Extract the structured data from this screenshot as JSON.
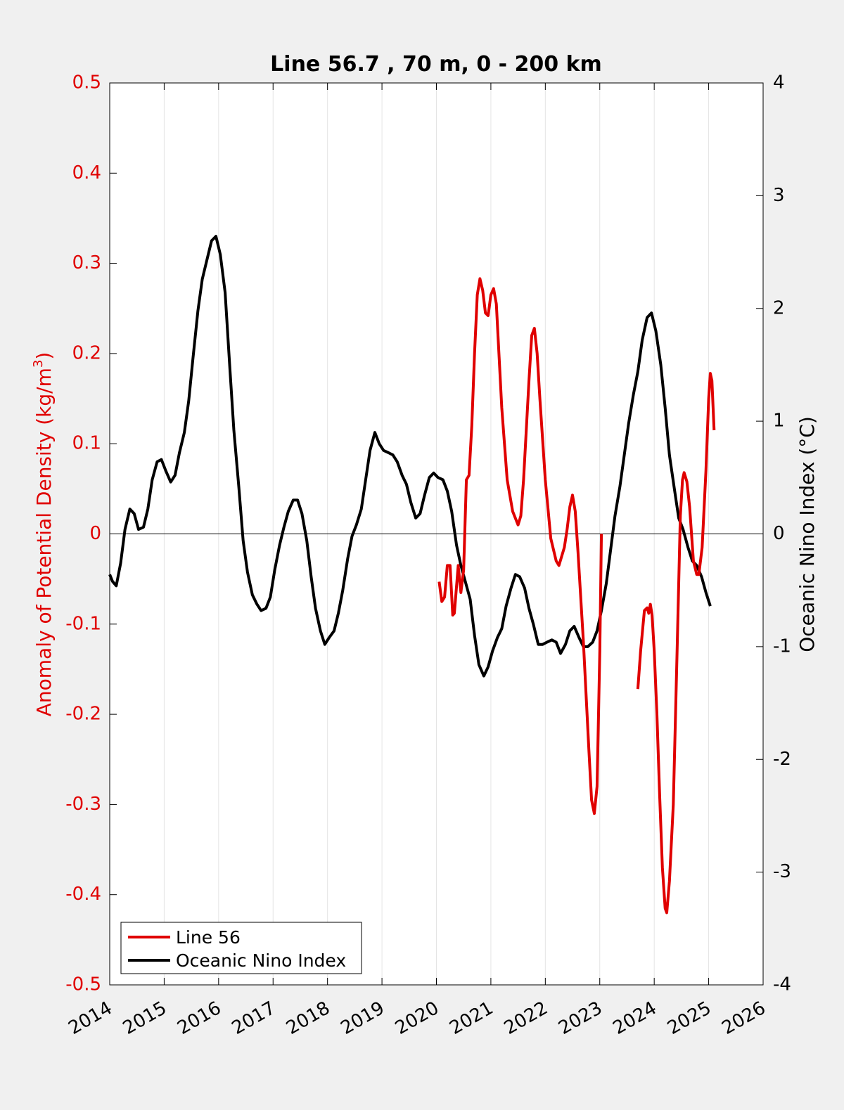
{
  "chart_data": {
    "type": "line",
    "title": "Line 56.7 , 70 m, 0 - 200 km",
    "xlabel": "",
    "ylabel_left": "Anomaly of Potential Density (kg/m",
    "ylabel_left_sup": "3",
    "ylabel_left_close": ")",
    "ylabel_right": "Oceanic Nino Index (°C)",
    "xlim": [
      2014,
      2026
    ],
    "ylim_left": [
      -0.5,
      0.5
    ],
    "ylim_right": [
      -4,
      4
    ],
    "x_ticks": [
      2014,
      2015,
      2016,
      2017,
      2018,
      2019,
      2020,
      2021,
      2022,
      2023,
      2024,
      2025,
      2026
    ],
    "x_tick_labels": [
      "2014",
      "2015",
      "2016",
      "2017",
      "2018",
      "2019",
      "2020",
      "2021",
      "2022",
      "2023",
      "2024",
      "2025",
      "2026"
    ],
    "y_left_ticks": [
      -0.5,
      -0.4,
      -0.3,
      -0.2,
      -0.1,
      0,
      0.1,
      0.2,
      0.3,
      0.4,
      0.5
    ],
    "y_left_tick_labels": [
      "-0.5",
      "-0.4",
      "-0.3",
      "-0.2",
      "-0.1",
      "0",
      "0.1",
      "0.2",
      "0.3",
      "0.4",
      "0.5"
    ],
    "y_right_ticks": [
      -4,
      -3,
      -2,
      -1,
      0,
      1,
      2,
      3,
      4
    ],
    "y_right_tick_labels": [
      "-4",
      "-3",
      "-2",
      "-1",
      "0",
      "1",
      "2",
      "3",
      "4"
    ],
    "grid": "vertical lines at x ticks",
    "zero_line": true,
    "legend_position": "bottom-left",
    "colors": {
      "line56": "#e00000",
      "oni": "#000000",
      "left_axis": "#e00000",
      "right_axis": "#000000"
    },
    "series": [
      {
        "name": "Line 56",
        "axis": "left",
        "segments": [
          [
            [
              2020.05,
              -0.053
            ],
            [
              2020.1,
              -0.075
            ],
            [
              2020.15,
              -0.07
            ],
            [
              2020.2,
              -0.035
            ],
            [
              2020.25,
              -0.035
            ],
            [
              2020.3,
              -0.09
            ],
            [
              2020.33,
              -0.088
            ],
            [
              2020.4,
              -0.035
            ],
            [
              2020.45,
              -0.065
            ],
            [
              2020.5,
              -0.04
            ],
            [
              2020.55,
              0.06
            ],
            [
              2020.6,
              0.065
            ],
            [
              2020.65,
              0.12
            ],
            [
              2020.7,
              0.2
            ],
            [
              2020.75,
              0.265
            ],
            [
              2020.8,
              0.283
            ],
            [
              2020.85,
              0.27
            ],
            [
              2020.9,
              0.245
            ],
            [
              2020.95,
              0.242
            ],
            [
              2021.0,
              0.265
            ],
            [
              2021.05,
              0.272
            ],
            [
              2021.1,
              0.255
            ],
            [
              2021.2,
              0.14
            ],
            [
              2021.3,
              0.06
            ],
            [
              2021.4,
              0.025
            ],
            [
              2021.5,
              0.01
            ],
            [
              2021.55,
              0.02
            ],
            [
              2021.6,
              0.06
            ],
            [
              2021.7,
              0.17
            ],
            [
              2021.75,
              0.22
            ],
            [
              2021.8,
              0.228
            ],
            [
              2021.85,
              0.2
            ],
            [
              2021.9,
              0.15
            ],
            [
              2022.0,
              0.06
            ],
            [
              2022.1,
              -0.005
            ],
            [
              2022.2,
              -0.03
            ],
            [
              2022.25,
              -0.035
            ],
            [
              2022.35,
              -0.015
            ],
            [
              2022.4,
              0.005
            ],
            [
              2022.45,
              0.03
            ],
            [
              2022.5,
              0.043
            ],
            [
              2022.55,
              0.025
            ],
            [
              2022.6,
              -0.02
            ],
            [
              2022.7,
              -0.12
            ],
            [
              2022.8,
              -0.24
            ],
            [
              2022.85,
              -0.295
            ],
            [
              2022.9,
              -0.31
            ],
            [
              2022.95,
              -0.28
            ],
            [
              2023.0,
              -0.13
            ],
            [
              2023.03,
              0.0
            ]
          ],
          [
            [
              2023.7,
              -0.172
            ],
            [
              2023.75,
              -0.13
            ],
            [
              2023.82,
              -0.085
            ],
            [
              2023.87,
              -0.082
            ],
            [
              2023.9,
              -0.088
            ],
            [
              2023.93,
              -0.078
            ],
            [
              2023.96,
              -0.09
            ],
            [
              2024.0,
              -0.13
            ],
            [
              2024.05,
              -0.2
            ],
            [
              2024.1,
              -0.29
            ],
            [
              2024.15,
              -0.37
            ],
            [
              2024.2,
              -0.415
            ],
            [
              2024.23,
              -0.42
            ],
            [
              2024.28,
              -0.385
            ],
            [
              2024.35,
              -0.3
            ],
            [
              2024.42,
              -0.13
            ],
            [
              2024.48,
              0.02
            ],
            [
              2024.52,
              0.06
            ],
            [
              2024.55,
              0.068
            ],
            [
              2024.6,
              0.058
            ],
            [
              2024.65,
              0.03
            ],
            [
              2024.72,
              -0.03
            ],
            [
              2024.78,
              -0.045
            ],
            [
              2024.82,
              -0.045
            ],
            [
              2024.88,
              -0.015
            ],
            [
              2024.95,
              0.07
            ],
            [
              2025.0,
              0.15
            ],
            [
              2025.03,
              0.178
            ],
            [
              2025.06,
              0.17
            ],
            [
              2025.1,
              0.115
            ]
          ]
        ]
      },
      {
        "name": "Oceanic Nino Index",
        "axis": "right",
        "points": [
          [
            2014.0,
            -0.36
          ],
          [
            2014.05,
            -0.42
          ],
          [
            2014.12,
            -0.46
          ],
          [
            2014.2,
            -0.26
          ],
          [
            2014.28,
            0.04
          ],
          [
            2014.37,
            0.22
          ],
          [
            2014.45,
            0.18
          ],
          [
            2014.53,
            0.04
          ],
          [
            2014.62,
            0.06
          ],
          [
            2014.7,
            0.22
          ],
          [
            2014.78,
            0.48
          ],
          [
            2014.87,
            0.64
          ],
          [
            2014.95,
            0.66
          ],
          [
            2015.03,
            0.56
          ],
          [
            2015.12,
            0.46
          ],
          [
            2015.2,
            0.52
          ],
          [
            2015.28,
            0.72
          ],
          [
            2015.37,
            0.9
          ],
          [
            2015.45,
            1.18
          ],
          [
            2015.53,
            1.56
          ],
          [
            2015.62,
            1.98
          ],
          [
            2015.7,
            2.26
          ],
          [
            2015.78,
            2.42
          ],
          [
            2015.87,
            2.6
          ],
          [
            2015.95,
            2.64
          ],
          [
            2016.03,
            2.48
          ],
          [
            2016.12,
            2.14
          ],
          [
            2016.2,
            1.52
          ],
          [
            2016.28,
            0.92
          ],
          [
            2016.37,
            0.42
          ],
          [
            2016.45,
            -0.06
          ],
          [
            2016.53,
            -0.34
          ],
          [
            2016.62,
            -0.54
          ],
          [
            2016.7,
            -0.62
          ],
          [
            2016.78,
            -0.68
          ],
          [
            2016.87,
            -0.66
          ],
          [
            2016.95,
            -0.56
          ],
          [
            2017.03,
            -0.32
          ],
          [
            2017.12,
            -0.1
          ],
          [
            2017.2,
            0.06
          ],
          [
            2017.28,
            0.2
          ],
          [
            2017.37,
            0.3
          ],
          [
            2017.45,
            0.3
          ],
          [
            2017.53,
            0.18
          ],
          [
            2017.62,
            -0.06
          ],
          [
            2017.7,
            -0.38
          ],
          [
            2017.78,
            -0.66
          ],
          [
            2017.87,
            -0.86
          ],
          [
            2017.95,
            -0.98
          ],
          [
            2018.03,
            -0.92
          ],
          [
            2018.12,
            -0.86
          ],
          [
            2018.2,
            -0.7
          ],
          [
            2018.28,
            -0.5
          ],
          [
            2018.37,
            -0.22
          ],
          [
            2018.45,
            -0.02
          ],
          [
            2018.53,
            0.08
          ],
          [
            2018.62,
            0.22
          ],
          [
            2018.7,
            0.48
          ],
          [
            2018.78,
            0.74
          ],
          [
            2018.87,
            0.9
          ],
          [
            2018.95,
            0.8
          ],
          [
            2019.03,
            0.74
          ],
          [
            2019.12,
            0.72
          ],
          [
            2019.2,
            0.7
          ],
          [
            2019.28,
            0.64
          ],
          [
            2019.37,
            0.52
          ],
          [
            2019.45,
            0.44
          ],
          [
            2019.53,
            0.28
          ],
          [
            2019.62,
            0.14
          ],
          [
            2019.7,
            0.18
          ],
          [
            2019.78,
            0.34
          ],
          [
            2019.87,
            0.5
          ],
          [
            2019.95,
            0.54
          ],
          [
            2020.03,
            0.5
          ],
          [
            2020.12,
            0.48
          ],
          [
            2020.2,
            0.38
          ],
          [
            2020.28,
            0.2
          ],
          [
            2020.37,
            -0.1
          ],
          [
            2020.45,
            -0.28
          ],
          [
            2020.53,
            -0.42
          ],
          [
            2020.62,
            -0.58
          ],
          [
            2020.7,
            -0.9
          ],
          [
            2020.78,
            -1.16
          ],
          [
            2020.87,
            -1.26
          ],
          [
            2020.95,
            -1.18
          ],
          [
            2021.03,
            -1.04
          ],
          [
            2021.12,
            -0.92
          ],
          [
            2021.2,
            -0.84
          ],
          [
            2021.28,
            -0.64
          ],
          [
            2021.37,
            -0.48
          ],
          [
            2021.45,
            -0.36
          ],
          [
            2021.53,
            -0.38
          ],
          [
            2021.62,
            -0.48
          ],
          [
            2021.7,
            -0.66
          ],
          [
            2021.78,
            -0.8
          ],
          [
            2021.87,
            -0.98
          ],
          [
            2021.95,
            -0.98
          ],
          [
            2022.03,
            -0.96
          ],
          [
            2022.12,
            -0.94
          ],
          [
            2022.2,
            -0.96
          ],
          [
            2022.28,
            -1.06
          ],
          [
            2022.37,
            -0.98
          ],
          [
            2022.45,
            -0.86
          ],
          [
            2022.53,
            -0.82
          ],
          [
            2022.62,
            -0.92
          ],
          [
            2022.7,
            -1.0
          ],
          [
            2022.78,
            -1.0
          ],
          [
            2022.87,
            -0.96
          ],
          [
            2022.95,
            -0.86
          ],
          [
            2023.03,
            -0.68
          ],
          [
            2023.12,
            -0.44
          ],
          [
            2023.2,
            -0.14
          ],
          [
            2023.28,
            0.16
          ],
          [
            2023.37,
            0.42
          ],
          [
            2023.45,
            0.7
          ],
          [
            2023.53,
            0.98
          ],
          [
            2023.62,
            1.24
          ],
          [
            2023.7,
            1.44
          ],
          [
            2023.78,
            1.72
          ],
          [
            2023.87,
            1.92
          ],
          [
            2023.95,
            1.96
          ],
          [
            2024.03,
            1.8
          ],
          [
            2024.12,
            1.5
          ],
          [
            2024.2,
            1.12
          ],
          [
            2024.28,
            0.7
          ],
          [
            2024.37,
            0.4
          ],
          [
            2024.45,
            0.14
          ],
          [
            2024.53,
            0.04
          ],
          [
            2024.62,
            -0.12
          ],
          [
            2024.7,
            -0.24
          ],
          [
            2024.78,
            -0.28
          ],
          [
            2024.87,
            -0.38
          ],
          [
            2024.95,
            -0.52
          ],
          [
            2025.03,
            -0.64
          ]
        ]
      }
    ]
  }
}
